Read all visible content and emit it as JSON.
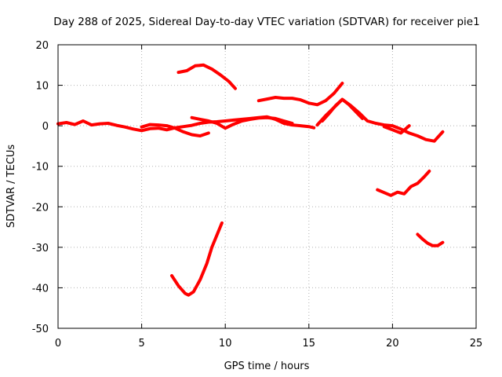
{
  "chart_data": {
    "type": "line",
    "title": "Day 288 of 2025, Sidereal Day-to-day VTEC variation (SDTVAR) for receiver pie1",
    "xlabel": "GPS time / hours",
    "ylabel": "SDTVAR / TECUs",
    "xlim": [
      0,
      25
    ],
    "ylim": [
      -50,
      20
    ],
    "xticks": [
      "0",
      "5",
      "10",
      "15",
      "20",
      "25"
    ],
    "yticks": [
      "20",
      "10",
      "0",
      "-10",
      "-20",
      "-30",
      "-40",
      "-50"
    ],
    "grid": true,
    "legend": "none",
    "color": "#ff0000",
    "series": [
      {
        "name": "arc-1",
        "x": [
          0,
          0.5,
          1,
          1.5,
          2,
          2.5,
          3,
          3.5,
          4,
          4.5,
          5,
          5.5,
          6,
          6.5,
          7,
          7.5,
          8,
          8.5,
          9,
          9.5,
          10,
          10.5,
          11,
          11.5,
          12,
          12.5,
          13,
          13.5,
          14,
          14.5,
          15,
          15.3
        ],
        "y": [
          0.5,
          0.8,
          0.3,
          1.2,
          0.2,
          0.5,
          0.6,
          0.1,
          -0.3,
          -0.8,
          -1.2,
          -0.7,
          -0.6,
          -1.0,
          -0.5,
          -0.2,
          0.1,
          0.6,
          0.9,
          1.0,
          1.2,
          1.4,
          1.6,
          1.8,
          2.0,
          2.2,
          1.6,
          0.6,
          0.2,
          0.0,
          -0.2,
          -0.5
        ]
      },
      {
        "name": "arc-2",
        "x": [
          5,
          5.5,
          6,
          6.5,
          7,
          7.5,
          8,
          8.5,
          9
        ],
        "y": [
          -0.3,
          0.3,
          0.2,
          0.0,
          -0.6,
          -1.5,
          -2.2,
          -2.5,
          -1.8
        ]
      },
      {
        "name": "arc-3",
        "x": [
          8,
          8.5,
          9,
          9.5,
          10,
          10.5,
          11,
          11.5,
          12,
          12.5,
          13,
          13.5,
          14
        ],
        "y": [
          2.0,
          1.6,
          1.2,
          0.6,
          -0.6,
          0.4,
          1.2,
          1.6,
          1.9,
          2.0,
          1.8,
          1.2,
          0.6
        ]
      },
      {
        "name": "arc-4",
        "x": [
          7.2,
          7.7,
          8.2,
          8.7,
          9.2,
          9.7,
          10.2,
          10.6
        ],
        "y": [
          13.2,
          13.6,
          14.8,
          15.0,
          14.0,
          12.6,
          11.0,
          9.2
        ]
      },
      {
        "name": "arc-5",
        "x": [
          12.0,
          12.5,
          13.0,
          13.5,
          14.0,
          14.5,
          15.0,
          15.5,
          16.0,
          16.5,
          17.0
        ],
        "y": [
          6.2,
          6.6,
          7.0,
          6.8,
          6.8,
          6.4,
          5.6,
          5.2,
          6.2,
          8.0,
          10.5
        ]
      },
      {
        "name": "arc-6",
        "x": [
          15.5,
          16.0,
          16.5,
          17.0,
          17.5,
          18.0,
          18.5,
          19.0,
          19.5,
          20.0,
          20.5,
          21.0,
          21.5,
          22.0,
          22.5,
          23.0
        ],
        "y": [
          0.2,
          2.5,
          4.5,
          6.5,
          5.0,
          3.2,
          1.2,
          0.6,
          0.2,
          0.0,
          -0.8,
          -1.8,
          -2.5,
          -3.4,
          -3.8,
          -1.5
        ]
      },
      {
        "name": "arc-7",
        "x": [
          15.8,
          16.2,
          16.6,
          17.0,
          17.4,
          17.8,
          18.2
        ],
        "y": [
          1.2,
          3.0,
          5.0,
          6.5,
          5.2,
          3.5,
          1.8
        ]
      },
      {
        "name": "arc-8",
        "x": [
          19.5,
          20.0,
          20.5,
          21.0
        ],
        "y": [
          -0.2,
          -1.0,
          -1.8,
          0.0
        ]
      },
      {
        "name": "arc-9",
        "x": [
          6.8,
          7.2,
          7.6,
          7.8,
          8.1,
          8.5,
          8.9,
          9.2,
          9.5,
          9.8
        ],
        "y": [
          -37,
          -39.5,
          -41.4,
          -41.8,
          -41.0,
          -38.0,
          -34.0,
          -30.0,
          -27.0,
          -24.0
        ]
      },
      {
        "name": "arc-10",
        "x": [
          19.1,
          19.5,
          19.9,
          20.3,
          20.7,
          21.1,
          21.5,
          21.9,
          22.2
        ],
        "y": [
          -15.8,
          -16.5,
          -17.2,
          -16.4,
          -16.8,
          -15.0,
          -14.2,
          -12.6,
          -11.2
        ]
      },
      {
        "name": "arc-11",
        "x": [
          21.5,
          21.8,
          22.1,
          22.4,
          22.7,
          23.0
        ],
        "y": [
          -26.8,
          -28.0,
          -29.0,
          -29.6,
          -29.6,
          -28.8
        ]
      }
    ]
  }
}
